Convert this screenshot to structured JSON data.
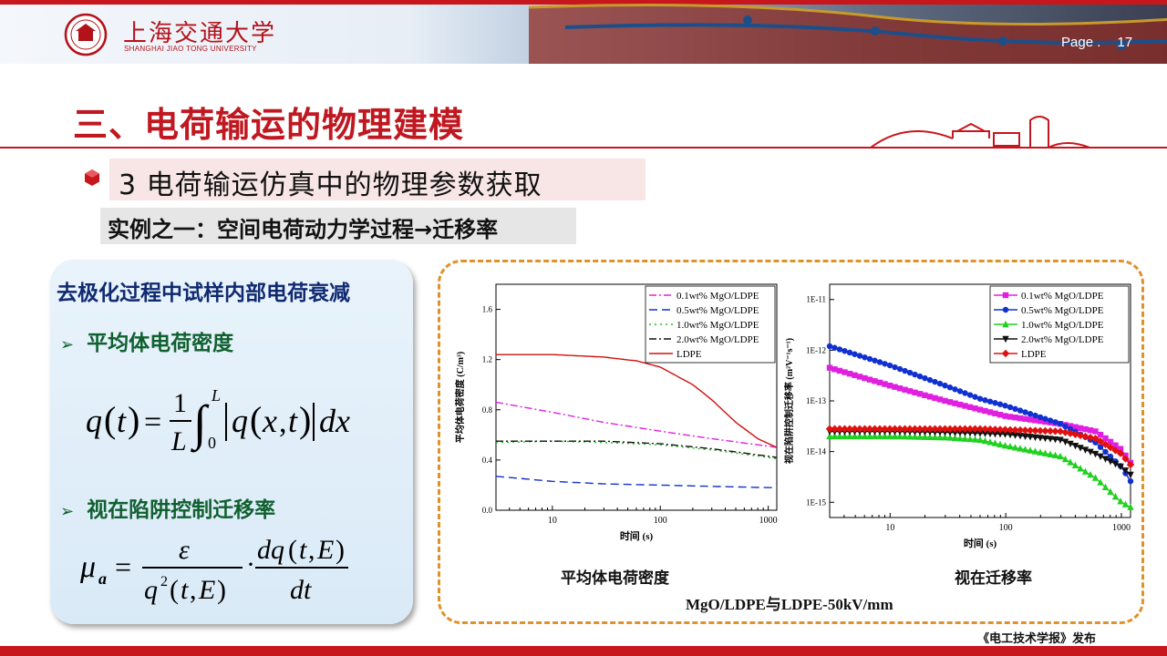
{
  "header": {
    "university_cn": "上海交通大学",
    "university_en": "SHANGHAI JIAO TONG UNIVERSITY",
    "page_label": "Page .",
    "page_number": "17"
  },
  "title": "三、电荷输运的物理建模",
  "subtitle": "3  电荷输运仿真中的物理参数获取",
  "example": "实例之一：空间电荷动力学过程→迁移率",
  "left_panel": {
    "title": "去极化过程中试样内部电荷衰减",
    "item1": "平均体电荷密度",
    "item2": "视在陷阱控制迁移率",
    "arrow": "➢"
  },
  "captions": {
    "left_chart": "平均体电荷密度",
    "right_chart": "视在迁移率",
    "combined": "MgO/LDPE与LDPE-50kV/mm"
  },
  "footer": "《电工技术学报》发布",
  "chart_data": [
    {
      "type": "line",
      "xscale": "log",
      "xlim": [
        3,
        1200
      ],
      "ylim": [
        0,
        1.8
      ],
      "xticks": [
        "10",
        "100",
        "1000"
      ],
      "yticks": [
        "0.0",
        "0.4",
        "0.8",
        "1.2",
        "1.6"
      ],
      "xlabel": "时间 (s)",
      "ylabel": "平均体电荷密度 (C/m³)",
      "legend": "top-right",
      "series": [
        {
          "name": "0.1wt% MgO/LDPE",
          "color": "#e020e0",
          "style": "dashdot",
          "x": [
            3,
            10,
            30,
            100,
            300,
            1000,
            1200
          ],
          "y": [
            0.86,
            0.78,
            0.7,
            0.63,
            0.57,
            0.51,
            0.5
          ]
        },
        {
          "name": "0.5wt% MgO/LDPE",
          "color": "#1030d0",
          "style": "dash",
          "x": [
            3,
            10,
            30,
            100,
            300,
            1000,
            1200
          ],
          "y": [
            0.27,
            0.23,
            0.21,
            0.2,
            0.19,
            0.18,
            0.18
          ]
        },
        {
          "name": "1.0wt% MgO/LDPE",
          "color": "#20c020",
          "style": "dot",
          "x": [
            3,
            10,
            30,
            100,
            300,
            1000,
            1200
          ],
          "y": [
            0.54,
            0.55,
            0.54,
            0.52,
            0.48,
            0.42,
            0.41
          ]
        },
        {
          "name": "2.0wt% MgO/LDPE",
          "color": "#111111",
          "style": "dashdot",
          "x": [
            3,
            10,
            30,
            100,
            300,
            1000,
            1200
          ],
          "y": [
            0.55,
            0.55,
            0.55,
            0.53,
            0.49,
            0.43,
            0.42
          ]
        },
        {
          "name": "LDPE",
          "color": "#d01010",
          "style": "solid",
          "x": [
            3,
            10,
            30,
            60,
            100,
            200,
            300,
            500,
            800,
            1200
          ],
          "y": [
            1.24,
            1.24,
            1.22,
            1.19,
            1.14,
            1.0,
            0.88,
            0.7,
            0.57,
            0.5
          ]
        }
      ]
    },
    {
      "type": "line",
      "xscale": "log",
      "yscale": "log",
      "xlim": [
        3,
        1200
      ],
      "ylim": [
        5e-16,
        2e-11
      ],
      "xticks": [
        "10",
        "100",
        "1000"
      ],
      "yticks": [
        "1E-11",
        "1E-12",
        "1E-13",
        "1E-14",
        "1E-15"
      ],
      "xlabel": "时间 (s)",
      "ylabel": "视在陷阱控制迁移率 (m²V⁻¹s⁻¹)",
      "legend": "top-right",
      "series": [
        {
          "name": "0.1wt% MgO/LDPE",
          "color": "#e020e0",
          "marker": "square",
          "x": [
            3,
            10,
            30,
            100,
            300,
            600,
            1000,
            1200
          ],
          "y": [
            4.5e-13,
            2e-13,
            1e-13,
            5e-14,
            3.5e-14,
            2.5e-14,
            1.1e-14,
            6e-15
          ]
        },
        {
          "name": "0.5wt% MgO/LDPE",
          "color": "#1030d0",
          "marker": "circle",
          "x": [
            3,
            10,
            30,
            60,
            100,
            300,
            600,
            1000,
            1200
          ],
          "y": [
            1.2e-12,
            5e-13,
            2e-13,
            1.1e-13,
            8e-14,
            3.5e-14,
            1.5e-14,
            5e-15,
            2.6e-15
          ]
        },
        {
          "name": "1.0wt% MgO/LDPE",
          "color": "#20d020",
          "marker": "triangle-up",
          "x": [
            3,
            10,
            30,
            60,
            100,
            300,
            600,
            1000,
            1200
          ],
          "y": [
            2e-14,
            2e-14,
            1.9e-14,
            1.7e-14,
            1.3e-14,
            8e-15,
            3e-15,
            1e-15,
            8e-16
          ]
        },
        {
          "name": "2.0wt% MgO/LDPE",
          "color": "#111111",
          "marker": "triangle-down",
          "x": [
            3,
            10,
            30,
            60,
            100,
            300,
            600,
            1000,
            1200
          ],
          "y": [
            2.5e-14,
            2.5e-14,
            2.4e-14,
            2.3e-14,
            2.2e-14,
            1.7e-14,
            9e-15,
            5e-15,
            3.5e-15
          ]
        },
        {
          "name": "LDPE",
          "color": "#e01010",
          "marker": "diamond",
          "x": [
            3,
            10,
            30,
            60,
            100,
            300,
            600,
            1000,
            1200
          ],
          "y": [
            2.8e-14,
            2.8e-14,
            2.8e-14,
            2.8e-14,
            2.7e-14,
            2.5e-14,
            1.8e-14,
            9e-15,
            5.5e-15
          ]
        }
      ]
    }
  ]
}
